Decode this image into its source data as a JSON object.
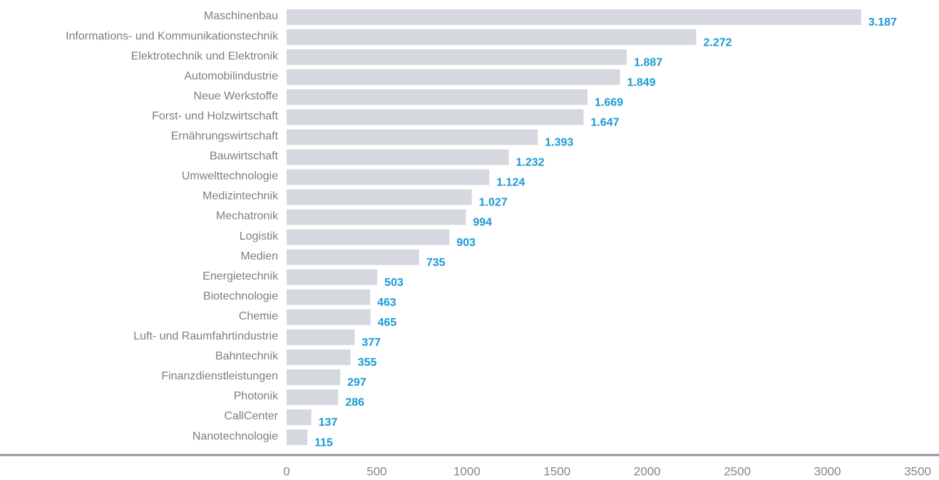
{
  "chart_data": {
    "type": "bar",
    "orientation": "horizontal",
    "categories": [
      "Maschinenbau",
      "Informations- und Kommunikationstechnik",
      "Elektrotechnik und Elektronik",
      "Automobilindustrie",
      "Neue Werkstoffe",
      "Forst- und Holzwirtschaft",
      "Ernährungswirtschaft",
      "Bauwirtschaft",
      "Umwelttechnologie",
      "Medizintechnik",
      "Mechatronik",
      "Logistik",
      "Medien",
      "Energietechnik",
      "Biotechnologie",
      "Chemie",
      "Luft- und Raumfahrtindustrie",
      "Bahntechnik",
      "Finanzdienstleistungen",
      "Photonik",
      "CallCenter",
      "Nanotechnologie"
    ],
    "values": [
      3187,
      2272,
      1887,
      1849,
      1669,
      1647,
      1393,
      1232,
      1124,
      1027,
      994,
      903,
      735,
      503,
      463,
      465,
      377,
      355,
      297,
      286,
      137,
      115
    ],
    "value_labels": [
      "3.187",
      "2.272",
      "1.887",
      "1.849",
      "1.669",
      "1.647",
      "1.393",
      "1.232",
      "1.124",
      "1.027",
      "994",
      "903",
      "735",
      "503",
      "463",
      "465",
      "377",
      "355",
      "297",
      "286",
      "137",
      "115"
    ],
    "color": "#d5d8de",
    "xlim": [
      0,
      3500
    ],
    "xticks": [
      0,
      500,
      1000,
      1500,
      2000,
      2500,
      3000,
      3500
    ],
    "grid": false
  }
}
